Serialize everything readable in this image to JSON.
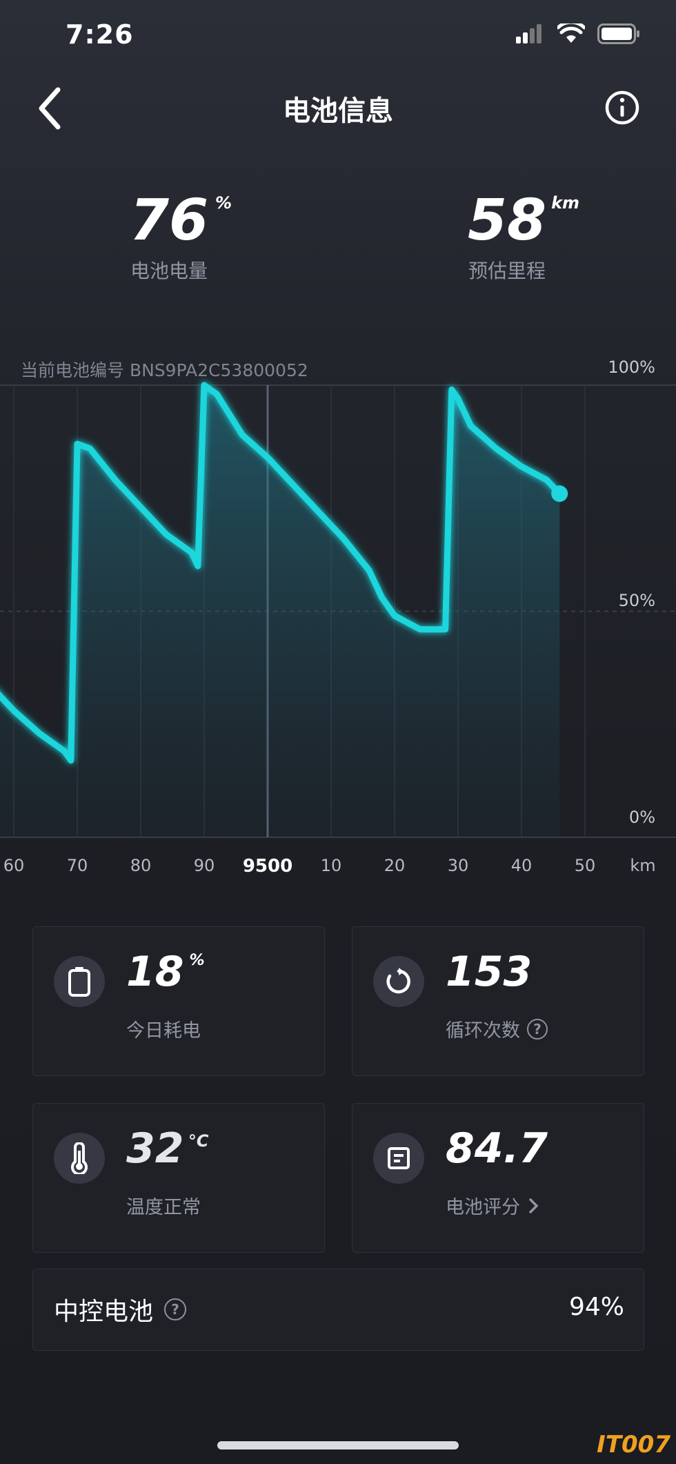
{
  "status_bar": {
    "time": "7:26"
  },
  "nav": {
    "title": "电池信息"
  },
  "metrics": {
    "battery_level": {
      "value": "76",
      "unit": "%",
      "label": "电池电量"
    },
    "range": {
      "value": "58",
      "unit": "km",
      "label": "预估里程"
    }
  },
  "chart": {
    "serial_label": "当前电池编号 BNS9PA2C53800052",
    "y_ticks": [
      "100%",
      "50%",
      "0%"
    ],
    "x_ticks": [
      "60",
      "70",
      "80",
      "90",
      "9500",
      "10",
      "20",
      "30",
      "40",
      "50"
    ],
    "x_unit": "km",
    "line_color": "#1fd6dc"
  },
  "chart_data": {
    "type": "line",
    "xlabel": "km",
    "ylabel": "",
    "ylim": [
      0,
      100
    ],
    "xlim": [
      9456,
      9556
    ],
    "x": [
      9456,
      9460,
      9464,
      9468,
      9469,
      9470,
      9472,
      9476,
      9480,
      9484,
      9488,
      9489,
      9490,
      9492,
      9496,
      9500,
      9504,
      9508,
      9512,
      9516,
      9518,
      9520,
      9524,
      9528,
      9529,
      9530,
      9532,
      9536,
      9540,
      9544,
      9546
    ],
    "series": [
      {
        "values": [
          34,
          28,
          23,
          19,
          17,
          87,
          86,
          79,
          73,
          67,
          63,
          60,
          100,
          98,
          89,
          84,
          78,
          72,
          66,
          59,
          53,
          49,
          46,
          46,
          99,
          97,
          91,
          86,
          82,
          79,
          76
        ]
      }
    ]
  },
  "cards": {
    "today": {
      "value": "18",
      "unit": "%",
      "label": "今日耗电",
      "icon": "battery-icon"
    },
    "cycles": {
      "value": "153",
      "label": "循环次数",
      "icon": "refresh-icon",
      "help": "?"
    },
    "temp": {
      "value": "32",
      "unit": "°C",
      "label": "温度正常",
      "icon": "thermometer-icon"
    },
    "score": {
      "value": "84.7",
      "label": "电池评分",
      "icon": "report-icon"
    }
  },
  "central_battery": {
    "label": "中控电池",
    "help": "?",
    "value": "94%"
  },
  "watermark": "IT007"
}
